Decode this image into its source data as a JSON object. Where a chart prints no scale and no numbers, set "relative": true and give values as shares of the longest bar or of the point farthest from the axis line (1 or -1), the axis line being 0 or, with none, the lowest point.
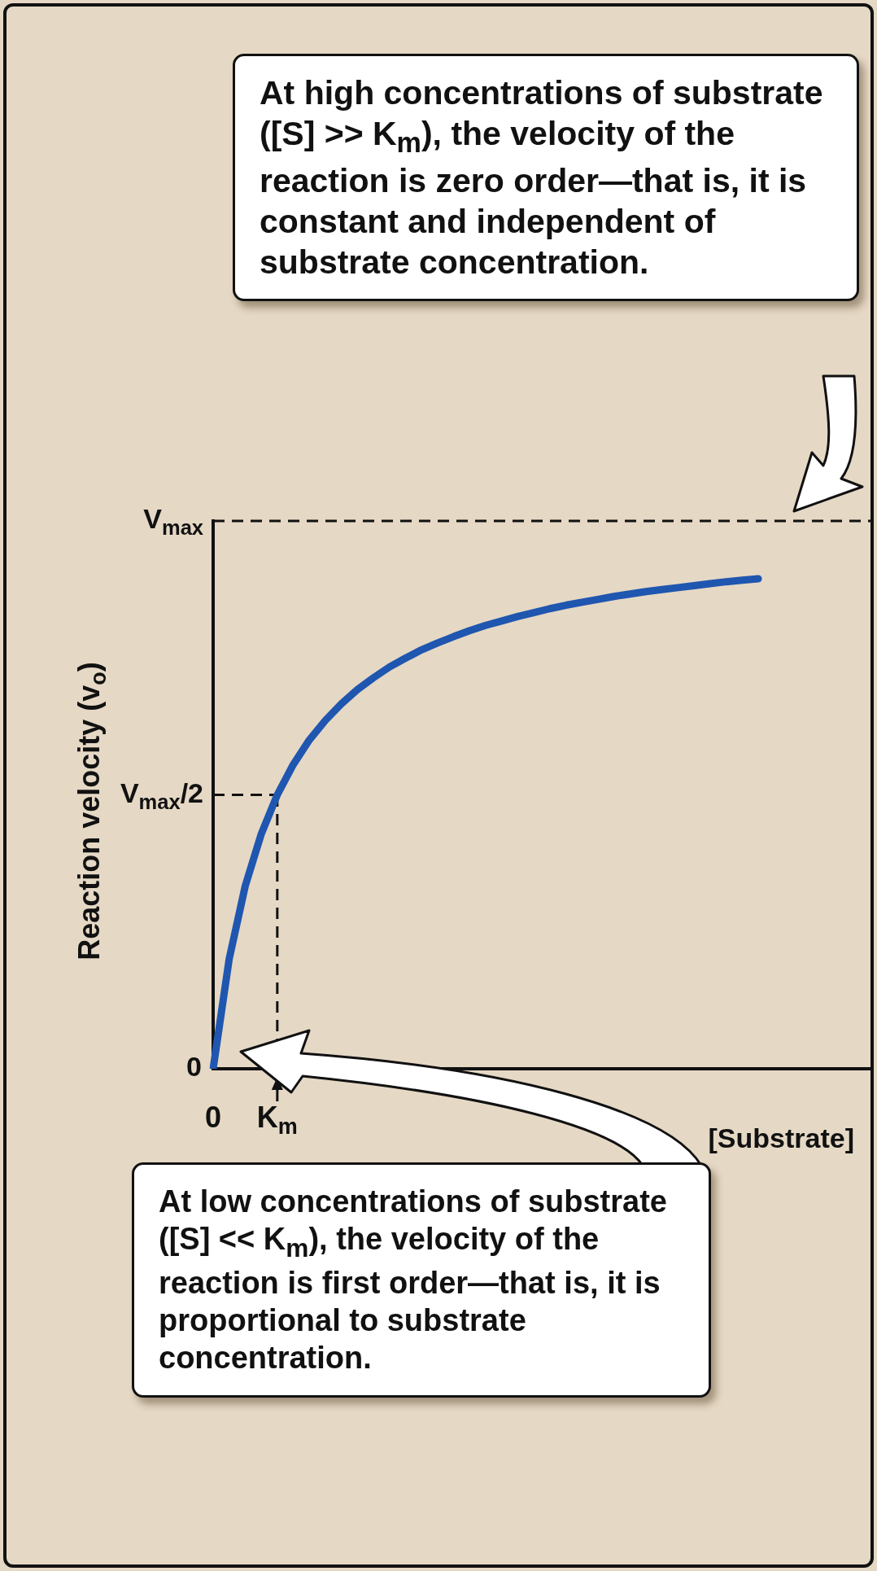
{
  "chart_data": {
    "type": "line",
    "relative": true,
    "xlabel": "[Substrate]",
    "ylabel": "Reaction velocity (v$_{o}$)",
    "categories": [
      "0",
      null,
      null,
      null,
      "K$_{m}$",
      null,
      null,
      null,
      null,
      null,
      null,
      null,
      null,
      null,
      null,
      null,
      null,
      null,
      null,
      null,
      null,
      null,
      null,
      null,
      null,
      null,
      null,
      null,
      null,
      null,
      null,
      null,
      null,
      null,
      null,
      null,
      null,
      null,
      null,
      null,
      null,
      null
    ],
    "series": [
      {
        "color": "#1f56b0",
        "values": [
          0,
          0.224,
          0.373,
          0.479,
          0.559,
          0.621,
          0.671,
          0.711,
          0.745,
          0.774,
          0.798,
          0.82,
          0.838,
          0.855,
          0.869,
          0.882,
          0.894,
          0.905,
          0.914,
          0.923,
          0.931,
          0.939,
          0.946,
          0.952,
          0.958,
          0.964,
          0.969,
          0.974,
          0.978,
          0.982,
          0.986,
          0.99,
          0.994,
          0.997,
          1,
          null,
          null,
          null,
          null,
          null,
          null,
          null
        ]
      }
    ],
    "ref_lines": [
      {
        "axis": "y",
        "value": 1.118,
        "label": "V$_{max}$",
        "line_style": "dashed"
      },
      {
        "axis": "y",
        "value": 0.559,
        "label": "V$_{max}$/2",
        "line_style": "dashed"
      },
      {
        "axis": "x",
        "value": "K$_{m}$",
        "line_style": "dashed"
      }
    ],
    "annotations": [
      "At high concentrations of substrate ([S] >> K$_{m}$), the velocity of the reaction is zero order—that is, it is constant and independent of substrate concentration.",
      "At low concentrations of substrate ([S] << K$_{m}$), the velocity of the reaction is first order—that is, it is proportional to substrate concentration.",
      "0"
    ],
    "marker": "none",
    "line_style": "solid",
    "grid": false,
    "legend": false
  }
}
